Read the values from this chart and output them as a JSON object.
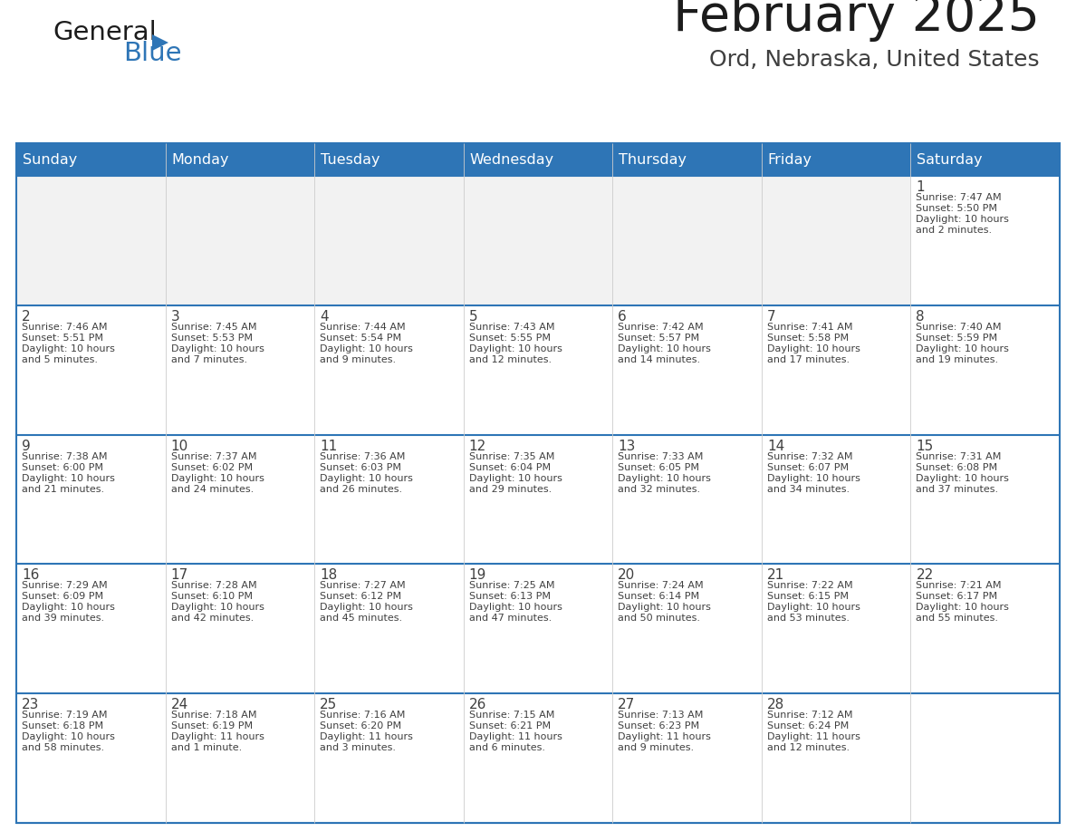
{
  "title": "February 2025",
  "subtitle": "Ord, Nebraska, United States",
  "days_of_week": [
    "Sunday",
    "Monday",
    "Tuesday",
    "Wednesday",
    "Thursday",
    "Friday",
    "Saturday"
  ],
  "header_bg": "#2E75B6",
  "header_text": "#FFFFFF",
  "cell_bg_light": "#F2F2F2",
  "cell_bg_white": "#FFFFFF",
  "border_color": "#2E75B6",
  "text_color": "#404040",
  "day_num_color": "#404040",
  "calendar_data": [
    [
      null,
      null,
      null,
      null,
      null,
      null,
      {
        "day": 1,
        "sunrise": "7:47 AM",
        "sunset": "5:50 PM",
        "daylight": "10 hours and 2 minutes."
      }
    ],
    [
      {
        "day": 2,
        "sunrise": "7:46 AM",
        "sunset": "5:51 PM",
        "daylight": "10 hours and 5 minutes."
      },
      {
        "day": 3,
        "sunrise": "7:45 AM",
        "sunset": "5:53 PM",
        "daylight": "10 hours and 7 minutes."
      },
      {
        "day": 4,
        "sunrise": "7:44 AM",
        "sunset": "5:54 PM",
        "daylight": "10 hours and 9 minutes."
      },
      {
        "day": 5,
        "sunrise": "7:43 AM",
        "sunset": "5:55 PM",
        "daylight": "10 hours and 12 minutes."
      },
      {
        "day": 6,
        "sunrise": "7:42 AM",
        "sunset": "5:57 PM",
        "daylight": "10 hours and 14 minutes."
      },
      {
        "day": 7,
        "sunrise": "7:41 AM",
        "sunset": "5:58 PM",
        "daylight": "10 hours and 17 minutes."
      },
      {
        "day": 8,
        "sunrise": "7:40 AM",
        "sunset": "5:59 PM",
        "daylight": "10 hours and 19 minutes."
      }
    ],
    [
      {
        "day": 9,
        "sunrise": "7:38 AM",
        "sunset": "6:00 PM",
        "daylight": "10 hours and 21 minutes."
      },
      {
        "day": 10,
        "sunrise": "7:37 AM",
        "sunset": "6:02 PM",
        "daylight": "10 hours and 24 minutes."
      },
      {
        "day": 11,
        "sunrise": "7:36 AM",
        "sunset": "6:03 PM",
        "daylight": "10 hours and 26 minutes."
      },
      {
        "day": 12,
        "sunrise": "7:35 AM",
        "sunset": "6:04 PM",
        "daylight": "10 hours and 29 minutes."
      },
      {
        "day": 13,
        "sunrise": "7:33 AM",
        "sunset": "6:05 PM",
        "daylight": "10 hours and 32 minutes."
      },
      {
        "day": 14,
        "sunrise": "7:32 AM",
        "sunset": "6:07 PM",
        "daylight": "10 hours and 34 minutes."
      },
      {
        "day": 15,
        "sunrise": "7:31 AM",
        "sunset": "6:08 PM",
        "daylight": "10 hours and 37 minutes."
      }
    ],
    [
      {
        "day": 16,
        "sunrise": "7:29 AM",
        "sunset": "6:09 PM",
        "daylight": "10 hours and 39 minutes."
      },
      {
        "day": 17,
        "sunrise": "7:28 AM",
        "sunset": "6:10 PM",
        "daylight": "10 hours and 42 minutes."
      },
      {
        "day": 18,
        "sunrise": "7:27 AM",
        "sunset": "6:12 PM",
        "daylight": "10 hours and 45 minutes."
      },
      {
        "day": 19,
        "sunrise": "7:25 AM",
        "sunset": "6:13 PM",
        "daylight": "10 hours and 47 minutes."
      },
      {
        "day": 20,
        "sunrise": "7:24 AM",
        "sunset": "6:14 PM",
        "daylight": "10 hours and 50 minutes."
      },
      {
        "day": 21,
        "sunrise": "7:22 AM",
        "sunset": "6:15 PM",
        "daylight": "10 hours and 53 minutes."
      },
      {
        "day": 22,
        "sunrise": "7:21 AM",
        "sunset": "6:17 PM",
        "daylight": "10 hours and 55 minutes."
      }
    ],
    [
      {
        "day": 23,
        "sunrise": "7:19 AM",
        "sunset": "6:18 PM",
        "daylight": "10 hours and 58 minutes."
      },
      {
        "day": 24,
        "sunrise": "7:18 AM",
        "sunset": "6:19 PM",
        "daylight": "11 hours and 1 minute."
      },
      {
        "day": 25,
        "sunrise": "7:16 AM",
        "sunset": "6:20 PM",
        "daylight": "11 hours and 3 minutes."
      },
      {
        "day": 26,
        "sunrise": "7:15 AM",
        "sunset": "6:21 PM",
        "daylight": "11 hours and 6 minutes."
      },
      {
        "day": 27,
        "sunrise": "7:13 AM",
        "sunset": "6:23 PM",
        "daylight": "11 hours and 9 minutes."
      },
      {
        "day": 28,
        "sunrise": "7:12 AM",
        "sunset": "6:24 PM",
        "daylight": "11 hours and 12 minutes."
      },
      null
    ]
  ]
}
